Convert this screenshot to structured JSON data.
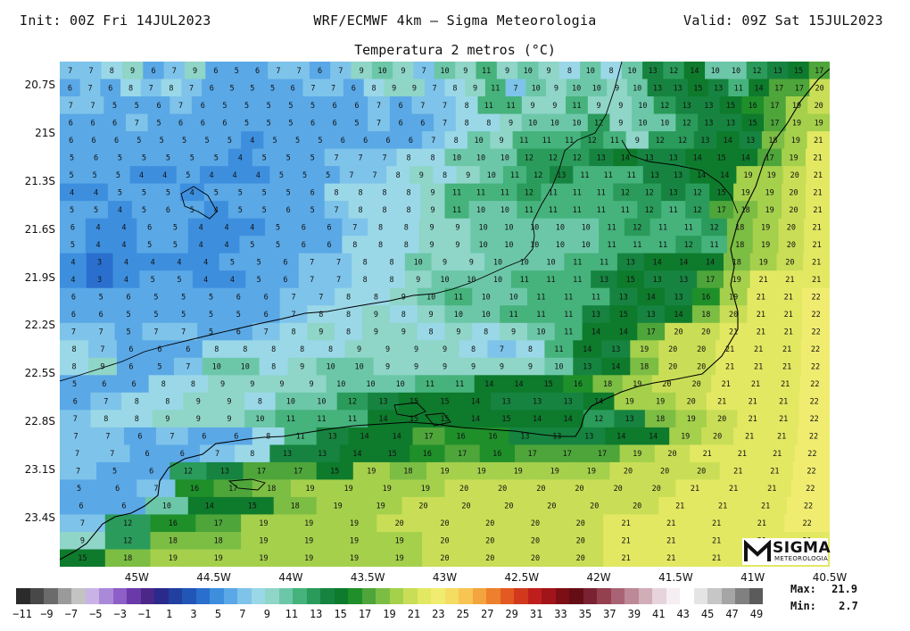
{
  "header": {
    "init": "Init: 00Z Fri 14JUL2023",
    "model": "WRF/ECMWF 4km – Sigma Meteorologia",
    "valid": "Valid: 09Z Sat 15JUL2023",
    "subtitle": "Temperatura 2 metros (°C)"
  },
  "map": {
    "lon_range": [
      -45.5,
      -40.5
    ],
    "lat_range": [
      -23.7,
      -20.55
    ],
    "lat_labels": [
      "20.7S",
      "21S",
      "21.3S",
      "21.6S",
      "21.9S",
      "22.2S",
      "22.5S",
      "22.8S",
      "23.1S",
      "23.4S"
    ],
    "lon_labels": [
      "45W",
      "44.5W",
      "44W",
      "43.5W",
      "43W",
      "42.5W",
      "42W",
      "41.5W",
      "41W",
      "40.5W"
    ],
    "grid_cols": 26,
    "grid_rows": 30,
    "value_rows": [
      "7 7 8 9 6 7 9 6 5 6 7 7 6 7 9 10 9 7 10 9 11 9 10 9 8 10 8 10 13 12 14 10 10 12 13 15 17",
      "6 7 6 8 7 8 7 6 5 5 5 6 7 7 6 8 9 9 7 8 9 11 7 10 9 10 10 9 10 13 13 15 13 11 14 17 17 20",
      "7 7 5 5 6 7 6 5 5 5 5 5 6 6 7 6 7 7 8 11 11 9 9 11 9 9 10 12 13 13 15 16 17 19 20",
      "6 6 6 7 5 6 6 6 5 5 5 6 6 5 7 6 6 7 8 8 9 10 10 10 12 9 10 10 12 13 13 15 17 19 19",
      "6 6 6 5 5 5 5 5 4 5 5 5 6 6 6 6 7 8 10 9 11 11 11 12 11 9 12 12 13 14 13 18 19 21",
      "5 6 5 5 5 5 5 4 5 5 5 7 7 7 8 8 10 10 10 12 12 12 13 14 13 13 14 15 14 17 19 21",
      "5 5 5 4 4 5 4 4 4 5 5 5 7 7 8 9 8 9 10 11 12 13 11 11 11 13 13 14 14 19 19 20 21",
      "4 4 5 5 5 4 5 5 5 5 6 8 8 8 8 9 11 11 11 12 11 11 11 12 12 13 12 15 19 19 20 21",
      "5 5 4 5 6 5 4 5 5 6 5 7 8 8 8 9 11 10 10 11 11 11 11 11 12 11 12 17 18 19 20 21",
      "6 4 4 6 5 4 4 4 5 6 6 7 8 8 9 9 10 10 10 10 10 11 12 11 11 12 18 19 20 21",
      "5 4 4 5 5 4 4 5 5 6 6 8 8 8 9 9 10 10 10 10 10 11 11 11 12 11 18 19 20 21",
      "4 3 4 4 4 4 5 5 6 7 7 8 8 10 9 9 10 10 10 11 11 13 14 14 14 18 19 20 21",
      "4 3 4 5 5 4 4 5 6 7 7 8 8 9 10 10 10 11 11 11 13 15 13 13 17 19 21 21 21",
      "6 5 6 5 5 5 6 6 7 7 8 8 9 10 11 10 10 11 11 11 13 14 13 16 19 21 21 22",
      "6 6 5 5 5 5 5 6 7 8 8 9 8 9 10 10 11 11 11 13 15 13 14 18 20 21 21 22",
      "7 7 5 7 7 5 6 7 8 9 8 9 9 8 9 8 9 10 11 14 14 17 20 20 21 21 21 22",
      "8 7 6 6 6 8 8 8 8 8 9 9 9 9 8 7 8 11 14 13 19 20 20 21 21 21 22",
      "8 9 6 5 7 10 10 8 9 10 10 9 9 9 9 9 9 10 13 14 18 20 20 21 21 21 22",
      "5 6 6 8 8 9 9 9 9 10 10 10 11 11 14 14 15 16 18 19 20 20 21 21 21 22",
      "6 7 8 8 9 9 8 10 10 12 13 15 15 14 13 13 13 14 19 19 20 21 21 21 22",
      "7 8 8 9 9 9 10 11 11 11 14 15 15 14 15 14 14 12 13 18 19 20 21 21 22",
      "7 7 6 7 6 6 8 11 13 14 14 17 16 16 13 13 13 14 14 19 20 21 21 22",
      "7 7 6 6 7 8 13 13 14 15 16 17 16 17 17 17 19 20 21 21 21 22",
      "7 5 6 12 13 17 17 15 19 18 19 19 19 19 19 20 20 20 21 21 22",
      "5 6 7 16 17 18 19 19 19 19 20 20 20 20 20 20 21 21 21 22",
      "6 6 10 14 15 18 19 19 20 20 20 20 20 20 21 21 21 22",
      "7 12 16 17 19 19 19 20 20 20 20 20 21 21 21 21 22",
      "9 12 18 18 19 19 19 19 20 20 20 20 21 21 21 21 21",
      "15 18 19 19 19 19 19 19 20 20 20 20 21 21 21 21 21"
    ]
  },
  "colorbar": {
    "labels": [
      "−11",
      "−9",
      "−7",
      "−5",
      "−3",
      "−1",
      "1",
      "3",
      "5",
      "7",
      "9",
      "11",
      "13",
      "15",
      "17",
      "19",
      "21",
      "23",
      "25",
      "27",
      "29",
      "31",
      "33",
      "35",
      "37",
      "39",
      "41",
      "43",
      "45",
      "47",
      "49"
    ],
    "colors": [
      "#2b2b2b",
      "#484848",
      "#6b6b6b",
      "#9a9a9a",
      "#c3c3c3",
      "#c9b3e6",
      "#ab89d9",
      "#8d5fc7",
      "#6a3aa8",
      "#4b2788",
      "#2a2a8c",
      "#21409f",
      "#2156b7",
      "#2a6fce",
      "#3d8fde",
      "#5aa8e6",
      "#7ec3ea",
      "#9ad8e8",
      "#8fd5c8",
      "#6cc7a8",
      "#46b27c",
      "#2a9b5a",
      "#168440",
      "#0e7a2c",
      "#1f8f2a",
      "#4ea53a",
      "#7cbd44",
      "#a5d04c",
      "#c9de56",
      "#e3e863",
      "#f0ec70",
      "#f5dc63",
      "#f6c552",
      "#f3a43e",
      "#ee7f2c",
      "#e25a22",
      "#d2381c",
      "#bf1f1c",
      "#a0141a",
      "#7d0e15",
      "#650d14",
      "#7a2234",
      "#94404f",
      "#a86475",
      "#bd8897",
      "#d1adb8",
      "#e6d3db",
      "#f5eef2",
      "#ffffff",
      "#e4e4e4",
      "#c6c6c6",
      "#a5a5a5",
      "#808080",
      "#5b5b5b"
    ]
  },
  "stats": {
    "max_label": "Max:",
    "max_value": "21.9",
    "min_label": "Min:",
    "min_value": "2.7"
  },
  "logo": {
    "word": "SIGMA",
    "sub": "METEOROLOGIA"
  }
}
